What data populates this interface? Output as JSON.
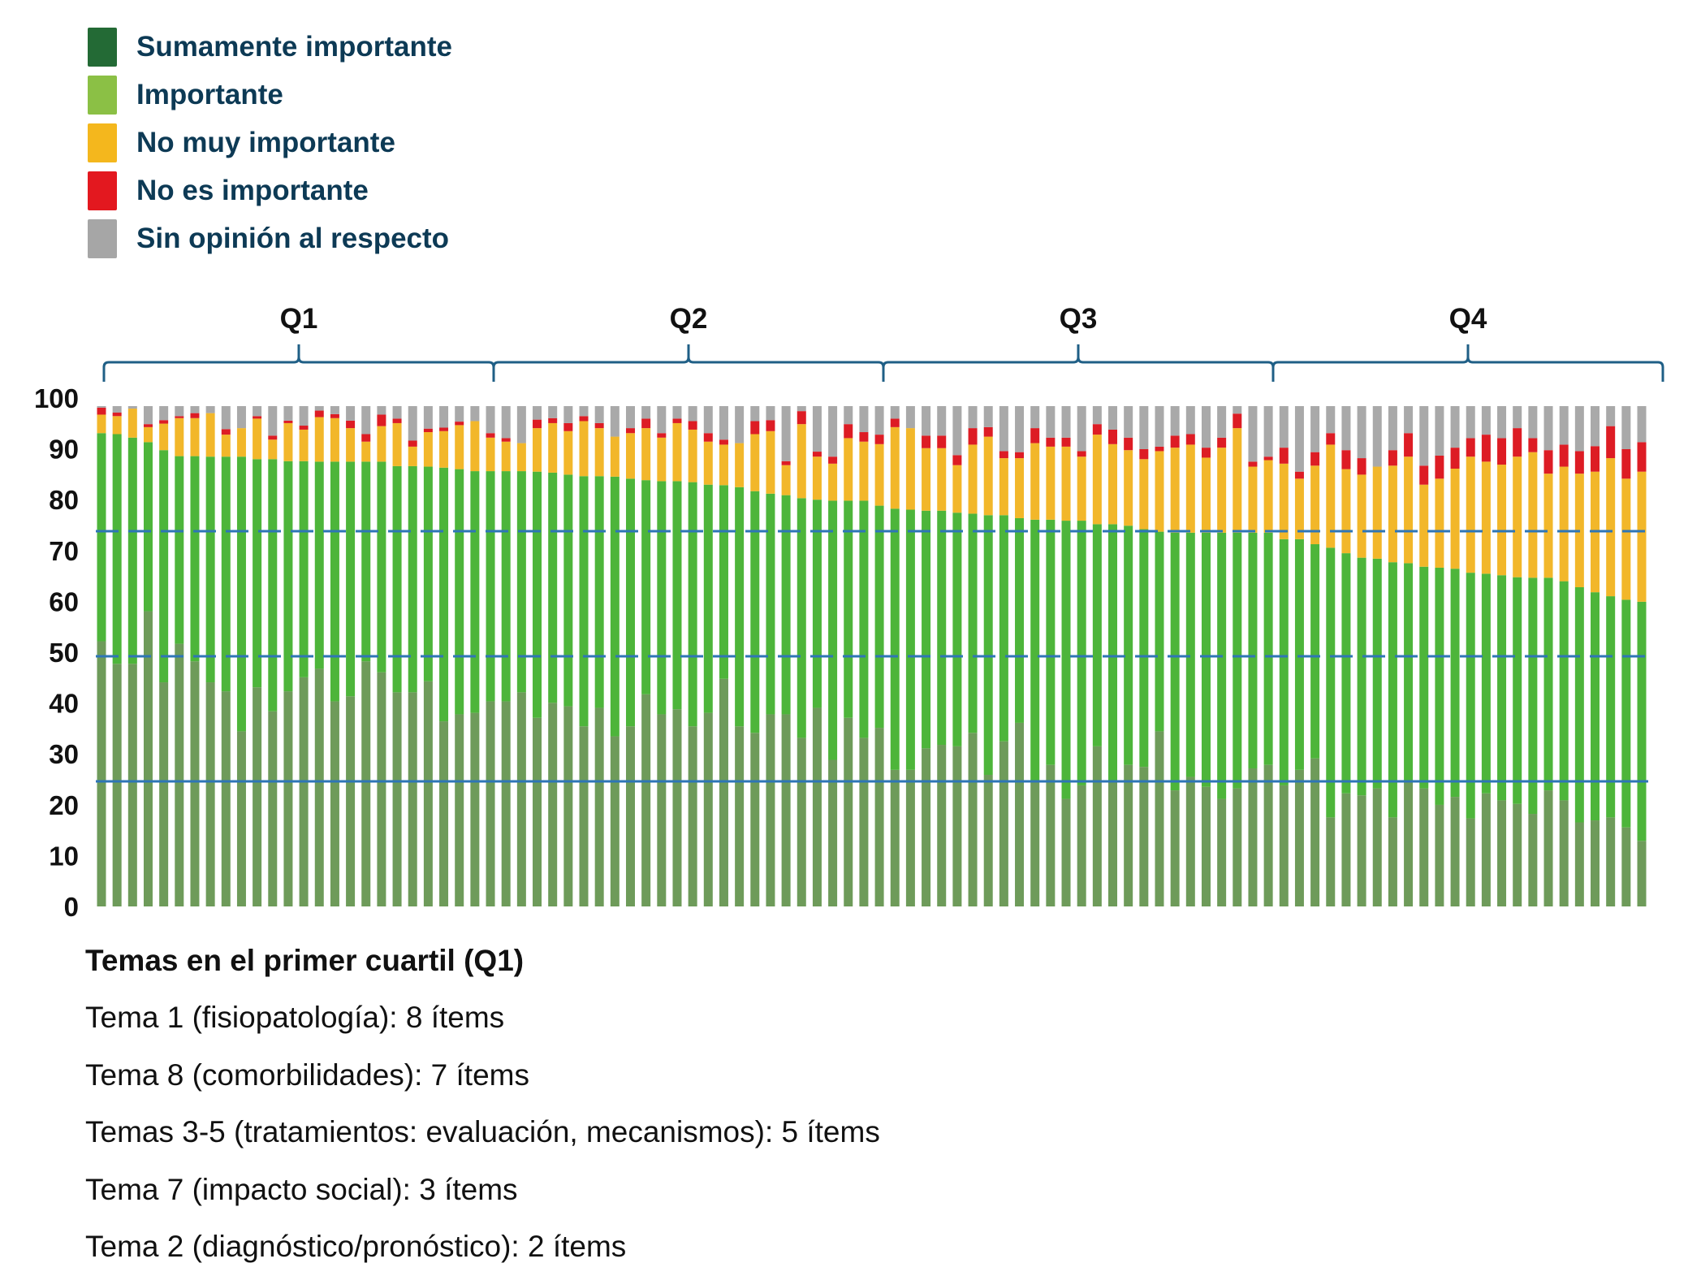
{
  "chart_data": {
    "type": "bar",
    "stacked": true,
    "ylim": [
      0,
      100
    ],
    "yticks": [
      0,
      10,
      20,
      30,
      40,
      50,
      60,
      70,
      80,
      90,
      100
    ],
    "grid": false,
    "legend_position": "top-left",
    "reference_lines": [
      {
        "value": 75,
        "style": "dashed",
        "color": "#2e75b6"
      },
      {
        "value": 50,
        "style": "dashed",
        "color": "#2e75b6"
      },
      {
        "value": 25,
        "style": "solid",
        "color": "#2e75b6"
      }
    ],
    "groups": [
      {
        "label": "Q1",
        "first_bar": 1,
        "last_bar": 25
      },
      {
        "label": "Q2",
        "first_bar": 26,
        "last_bar": 50
      },
      {
        "label": "Q3",
        "first_bar": 51,
        "last_bar": 75
      },
      {
        "label": "Q4",
        "first_bar": 76,
        "last_bar": 100
      }
    ],
    "series": [
      {
        "name": "Sumamente importante",
        "legend_color": "#236a35",
        "color": "#6e9b5a",
        "values": [
          53,
          48.5,
          48.5,
          59,
          44.8,
          52.5,
          49,
          44.8,
          43,
          35,
          43.8,
          39,
          43,
          45.8,
          47.5,
          41,
          42,
          49,
          46.8,
          42.8,
          42.8,
          45,
          37,
          38.4,
          38.7,
          41,
          41,
          42.8,
          37.7,
          40.7,
          40,
          36,
          39.7,
          34,
          36,
          42.4,
          38.4,
          39.4,
          36,
          38.7,
          45.5,
          36,
          34.7,
          38.4,
          38.4,
          33.7,
          39.7,
          29.3,
          37.7,
          33.7,
          35.7,
          27.3,
          27.3,
          31.6,
          32.3,
          32,
          34.7,
          26.3,
          33,
          36.7,
          24.9,
          28.3,
          21.5,
          24.2,
          32,
          24.9,
          28.3,
          27.9,
          35,
          23.2,
          25.9,
          23.9,
          21.5,
          23.6,
          27.6,
          28.3,
          24.2,
          27.3,
          29.6,
          17.8,
          22.6,
          22.2,
          23.6,
          17.8,
          24.9,
          23.6,
          20.3,
          21.9,
          17.6,
          22.6,
          21.2,
          20.5,
          18.5,
          23.2,
          21.2,
          16.8,
          17.2,
          17.8,
          15.8,
          13.1
        ]
      },
      {
        "name": "Importante",
        "legend_color": "#8bc045",
        "color": "#4db53a",
        "values": [
          41.6,
          45.9,
          45.2,
          33.8,
          46.4,
          37.5,
          41,
          45.1,
          46.9,
          54.9,
          45.6,
          50.4,
          46,
          43.2,
          41.4,
          47.9,
          46.9,
          39.9,
          42.1,
          45.2,
          45.2,
          42.9,
          50.7,
          49,
          48.3,
          46,
          46,
          44.2,
          49.2,
          46,
          46.3,
          50,
          46.3,
          51.9,
          49.5,
          42.8,
          46.6,
          45.6,
          48.8,
          45.6,
          38.7,
          47.8,
          48.3,
          44.1,
          43.8,
          47.9,
          41.6,
          51.8,
          43.4,
          47.4,
          44.4,
          52.2,
          52,
          47.5,
          46.8,
          46.7,
          43.8,
          51.9,
          45.2,
          40.9,
          52.4,
          49,
          55.6,
          52.9,
          44.4,
          51.5,
          47.8,
          47.5,
          39.9,
          51.5,
          48.8,
          50.8,
          53.2,
          51.1,
          47.1,
          46.4,
          49.2,
          46.1,
          42.8,
          53.9,
          48,
          47.5,
          45.9,
          51,
          43.7,
          44.3,
          47.4,
          45.6,
          49.1,
          43.9,
          45,
          45.3,
          47.2,
          42.5,
          43.8,
          47,
          45.6,
          44.2,
          45.5,
          47.8
        ]
      },
      {
        "name": "No muy importante",
        "legend_color": "#f4b71d",
        "color": "#f2b72a",
        "values": [
          3.7,
          3.6,
          5.8,
          3,
          5.3,
          7.6,
          7.6,
          8.7,
          4.4,
          5.7,
          8.1,
          3.9,
          7.6,
          6.3,
          8.9,
          8.7,
          6.7,
          4,
          7.1,
          8.6,
          3.9,
          6.9,
          7.3,
          8.8,
          10,
          6.7,
          5.9,
          5.6,
          8.7,
          9.9,
          8.7,
          11,
          9.6,
          8,
          9.1,
          10.4,
          8.7,
          11.6,
          10.5,
          8.6,
          8.1,
          8.8,
          11.4,
          12.5,
          6,
          14.8,
          8.6,
          7.4,
          12.5,
          11.8,
          12.3,
          16.3,
          16.3,
          12.5,
          12.5,
          9.5,
          13.8,
          15.7,
          11.4,
          12,
          15.3,
          14.6,
          14.8,
          12.8,
          17.9,
          16,
          15.1,
          14,
          16.1,
          17,
          17.6,
          15,
          17,
          20.9,
          13.2,
          14.5,
          15.1,
          12.1,
          15.7,
          20.6,
          16.8,
          16.6,
          18.4,
          19.3,
          21.3,
          16.4,
          17.8,
          20,
          23.2,
          22.4,
          22.1,
          24.1,
          25.1,
          20.8,
          22.9,
          22.7,
          24.1,
          27.6,
          24.2,
          26
        ]
      },
      {
        "name": "No es importante",
        "legend_color": "#e3181f",
        "color": "#dd1c24",
        "values": [
          1.4,
          0.7,
          0,
          0.6,
          0.7,
          0.4,
          1,
          0,
          1.1,
          0,
          0.5,
          0.8,
          0.5,
          0.8,
          1.3,
          0.8,
          1.5,
          1.5,
          2.3,
          0.9,
          1.2,
          0.7,
          0.7,
          0.7,
          0,
          0.9,
          0.7,
          0,
          1.7,
          1,
          1.6,
          1,
          1,
          0,
          1,
          1.9,
          0.9,
          0.9,
          1.7,
          1.7,
          1,
          0,
          2.6,
          2.2,
          0.8,
          2.6,
          1,
          1.4,
          2.8,
          1.9,
          1.9,
          1.7,
          0,
          2.5,
          2.5,
          2,
          3.3,
          1.9,
          1.4,
          1.2,
          3,
          1.8,
          1.8,
          1.1,
          2.1,
          2.9,
          2.5,
          2,
          0.9,
          2.4,
          2.1,
          2,
          2,
          2.9,
          1,
          0.7,
          3.2,
          1.4,
          2.7,
          2.3,
          3.8,
          3.3,
          0,
          3.1,
          4.7,
          3.8,
          4.6,
          4.2,
          3.7,
          5.4,
          5.3,
          5.7,
          2.8,
          4.7,
          4.4,
          4.5,
          5.1,
          6.4,
          5.9,
          5.9
        ]
      },
      {
        "name": "Sin opinión al respecto",
        "legend_color": "#a6a6a6",
        "color": "#a9a9a9",
        "values": [
          0.3,
          1.3,
          0.5,
          3.6,
          2.8,
          2,
          1.4,
          1.4,
          4.6,
          4.4,
          2,
          5.9,
          2.9,
          3.9,
          0.9,
          1.6,
          2.9,
          5.6,
          1.7,
          2.5,
          6.9,
          4.5,
          4.3,
          3.1,
          3,
          5.4,
          6.4,
          7.4,
          2.7,
          2.4,
          3.4,
          2,
          3.4,
          6.1,
          4.4,
          2.5,
          5.4,
          2.5,
          3,
          5.4,
          6.7,
          7.4,
          3,
          2.8,
          11,
          1,
          9.1,
          10.1,
          3.6,
          5.2,
          5.7,
          2.5,
          4.4,
          5.9,
          5.9,
          9.8,
          4.4,
          4.2,
          9,
          9.2,
          4.4,
          6.3,
          6.3,
          9,
          3.6,
          4.7,
          6.3,
          8.6,
          8.1,
          5.9,
          5.6,
          8.3,
          6.3,
          1.5,
          11.1,
          10.1,
          8.3,
          13.1,
          9.2,
          5.4,
          8.8,
          10.4,
          12.1,
          8.8,
          5.4,
          11.9,
          9.9,
          8.3,
          6.4,
          5.7,
          6.4,
          4.4,
          6.4,
          8.8,
          7.7,
          9,
          8,
          4,
          8.6,
          7.2
        ]
      }
    ]
  },
  "notes": {
    "title": "Temas en el primer cuartil (Q1)",
    "lines": [
      "Tema 1 (fisiopatología): 8 ítems",
      "Tema 8 (comorbilidades): 7 ítems",
      "Temas 3-5 (tratamientos: evaluación, mecanismos): 5 ítems",
      "Tema 7 (impacto social): 3 ítems",
      "Tema 2 (diagnóstico/pronóstico): 2 ítems"
    ]
  }
}
